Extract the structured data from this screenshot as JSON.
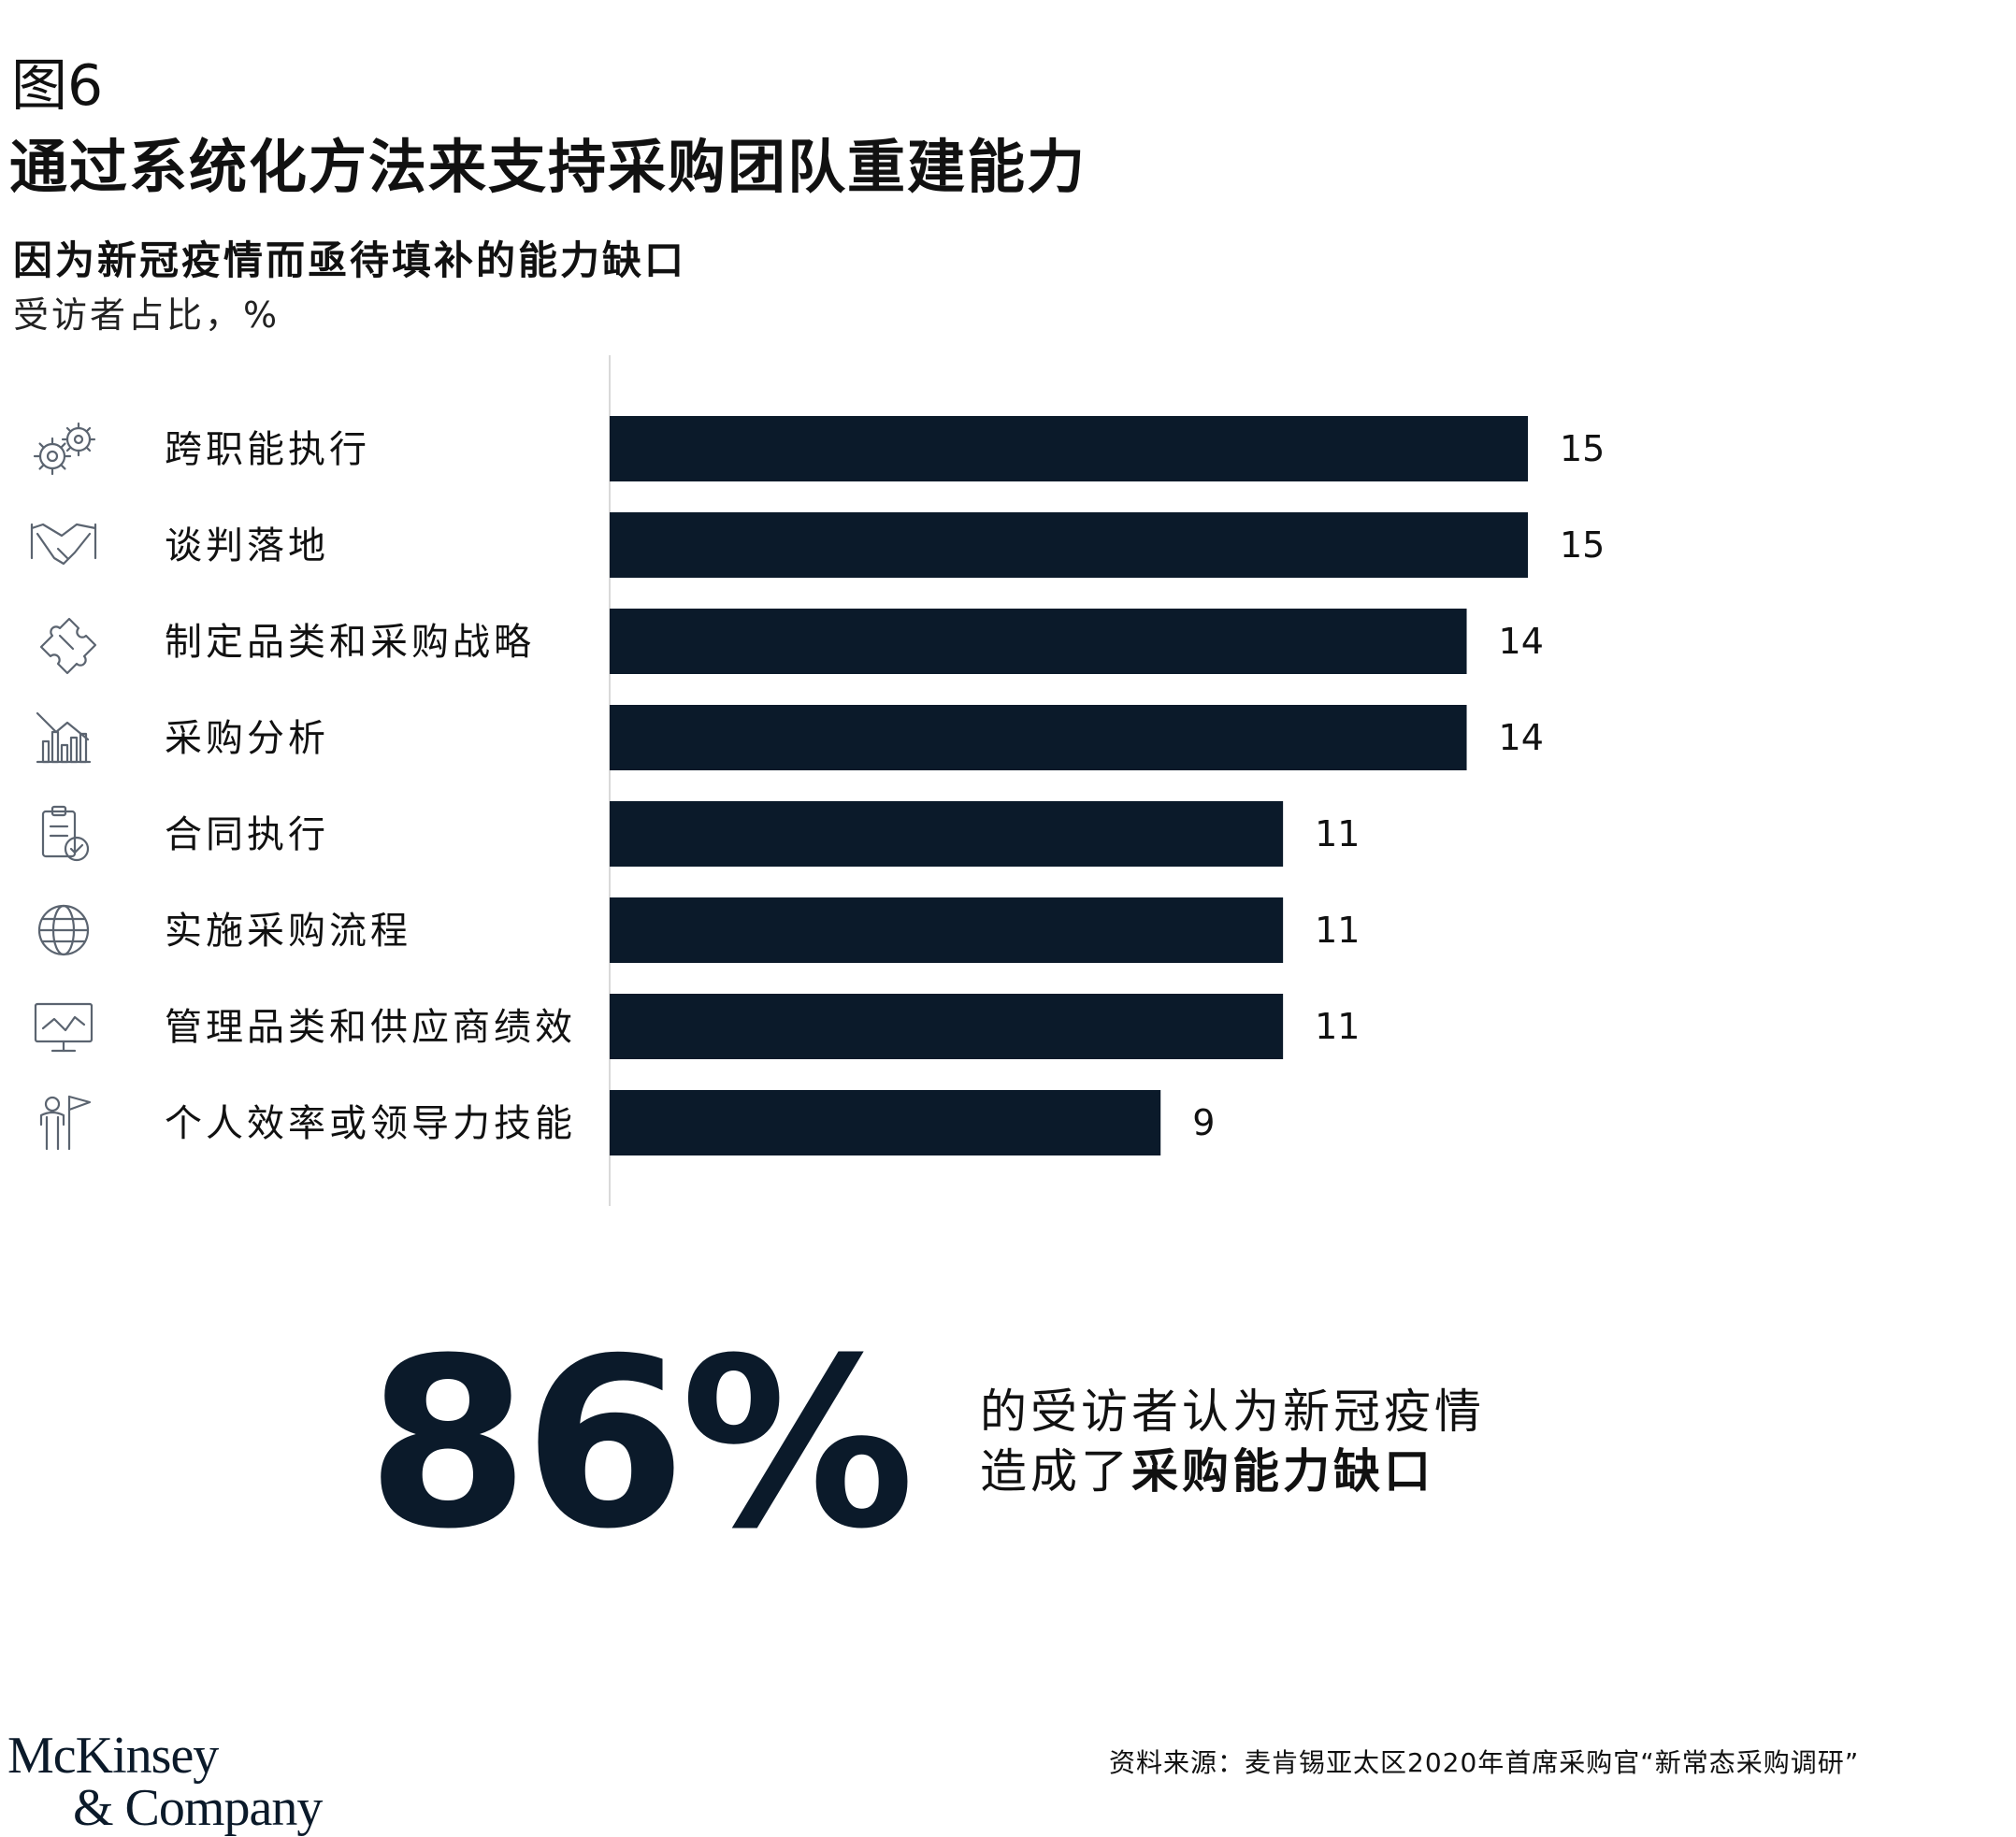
{
  "header": {
    "figure_label": "图6",
    "title": "通过系统化方法来支持采购团队重建能力",
    "subtitle": "因为新冠疫情而亟待填补的能力缺口",
    "unit": "受访者占比，%"
  },
  "chart_data": {
    "type": "bar",
    "orientation": "horizontal",
    "title": "因为新冠疫情而亟待填补的能力缺口",
    "unit_label": "受访者占比，%",
    "categories": [
      "跨职能执行",
      "谈判落地",
      "制定品类和采购战略",
      "采购分析",
      "合同执行",
      "实施采购流程",
      "管理品类和供应商绩效",
      "个人效率或领导力技能"
    ],
    "icons": [
      "gears-icon",
      "handshake-icon",
      "puzzle-icon",
      "bar-chart-icon",
      "clipboard-check-icon",
      "globe-icon",
      "monitor-chart-icon",
      "person-flag-icon"
    ],
    "values": [
      15,
      15,
      14,
      14,
      11,
      11,
      11,
      9
    ],
    "xlim": [
      0,
      15
    ],
    "bar_color": "#0b1a2a",
    "grid": false
  },
  "callout": {
    "value": "86%",
    "line1": "的受访者认为新冠疫情",
    "line2_prefix": "造成了",
    "line2_bold": "采购能力缺口"
  },
  "footer": {
    "logo_line1": "McKinsey",
    "logo_line2": "& Company",
    "source": "资料来源：麦肯锡亚太区2020年首席采购官“新常态采购调研”"
  }
}
